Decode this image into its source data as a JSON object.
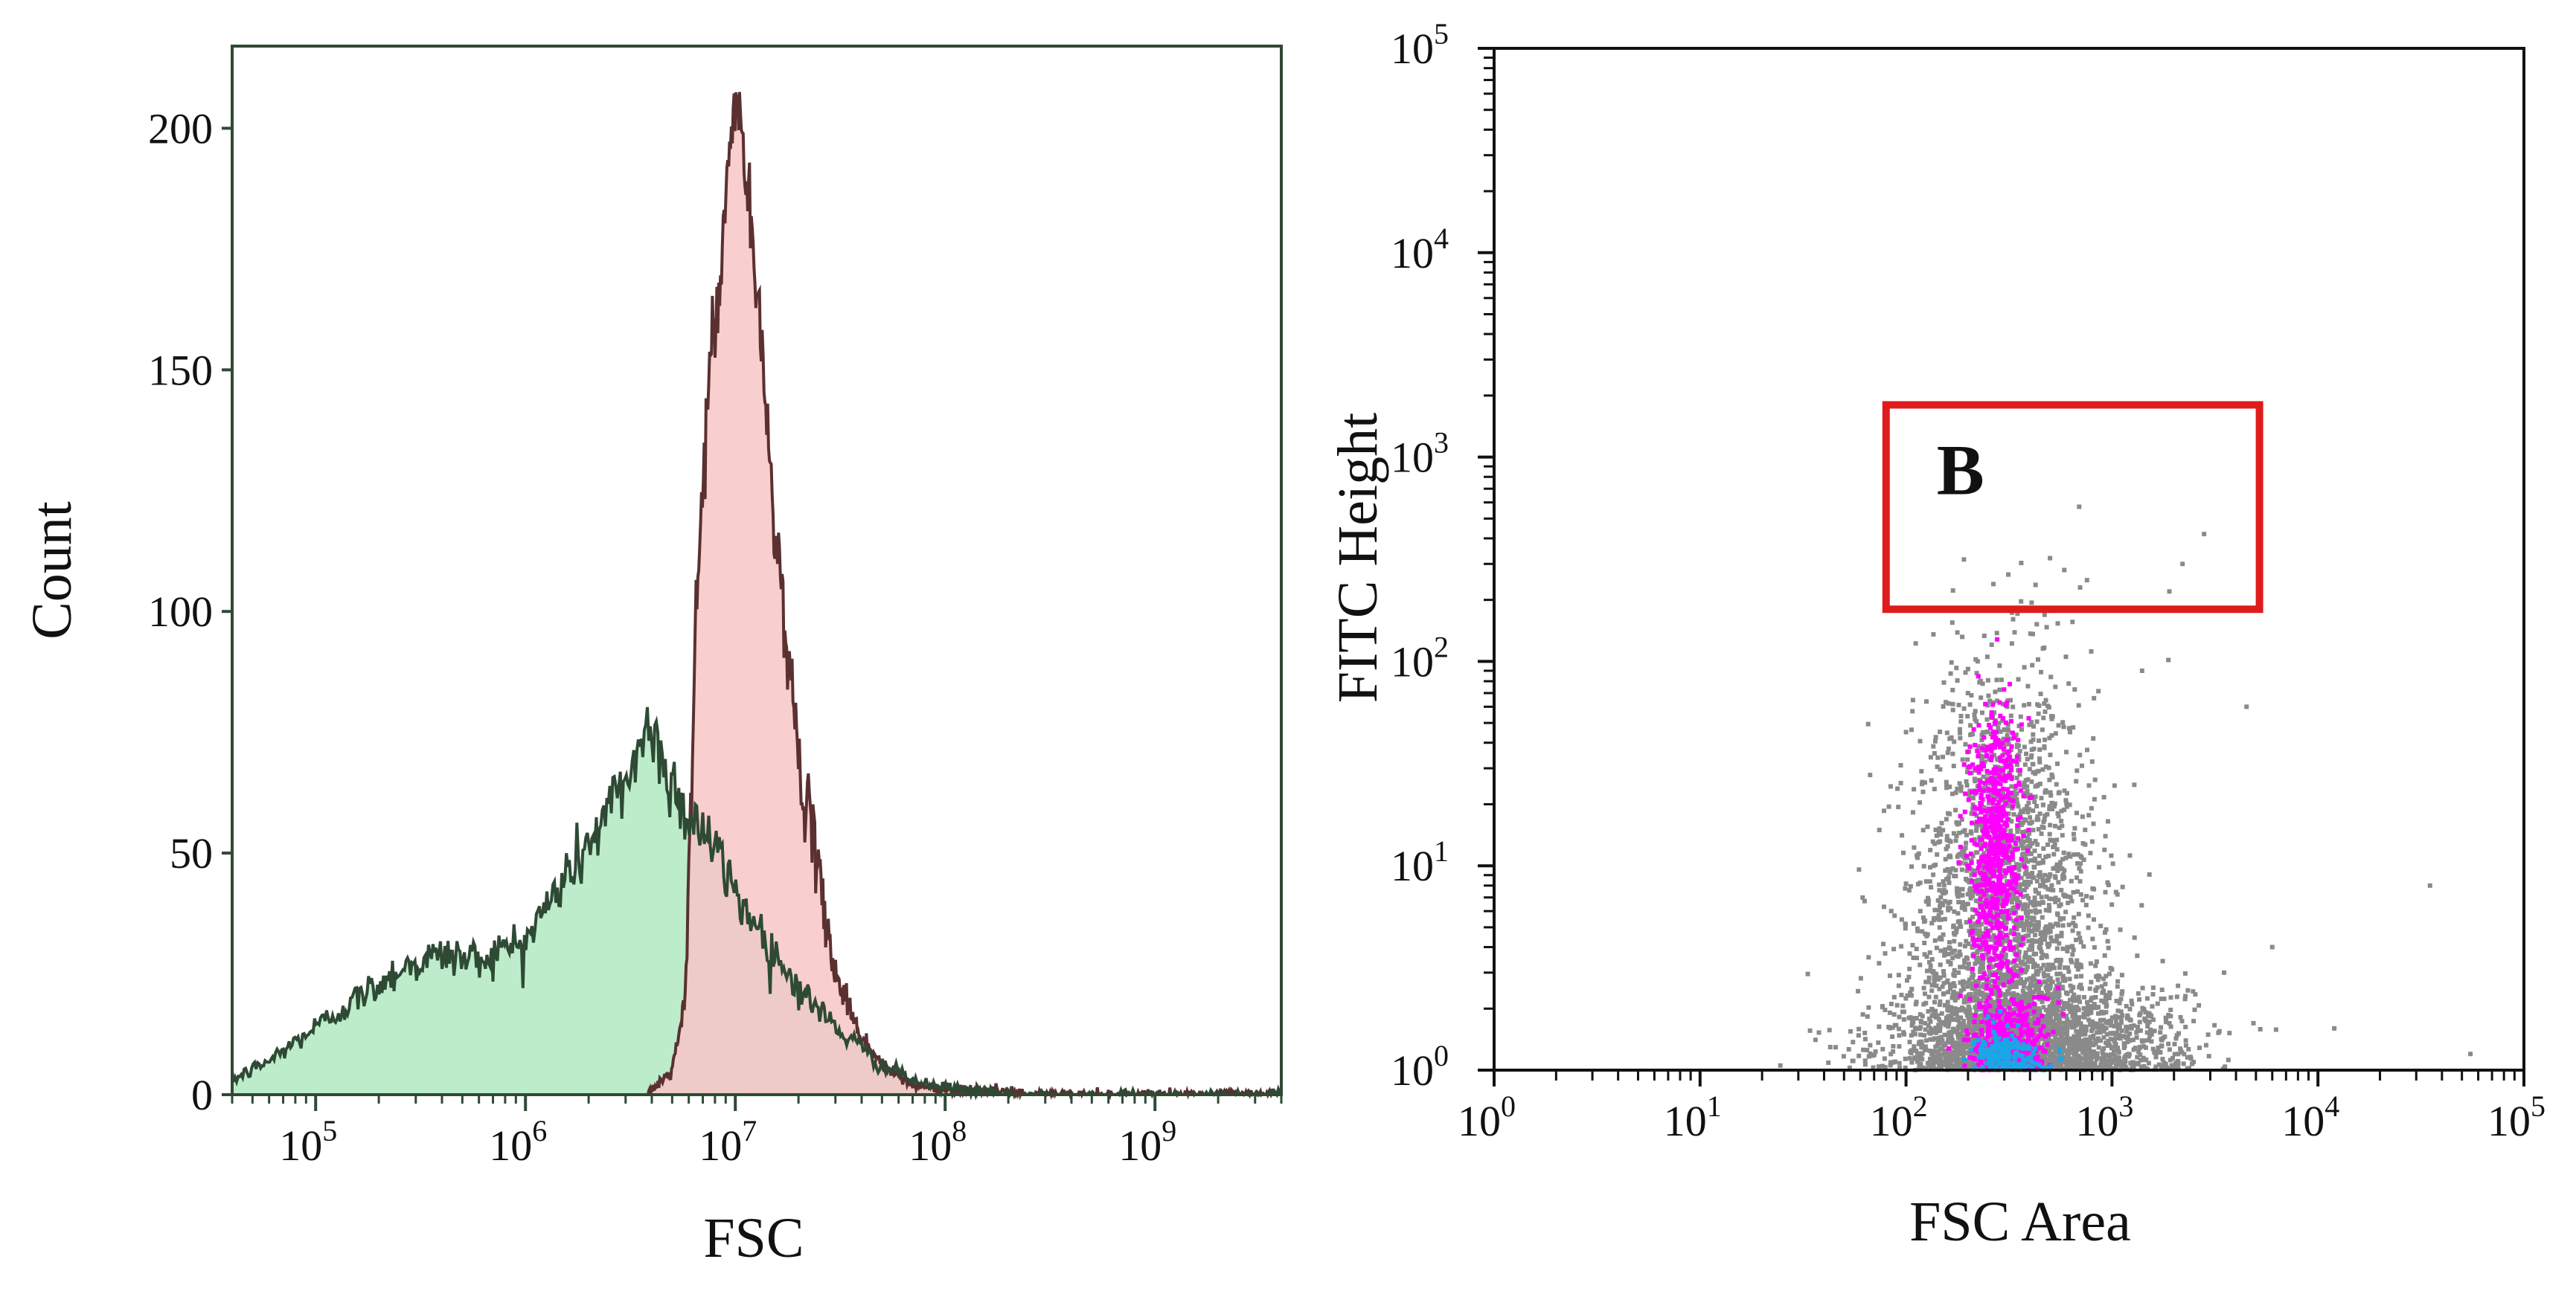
{
  "chart_data": [
    {
      "type": "area",
      "xlabel": "FSC",
      "ylabel": "Count",
      "xscale": "log",
      "xlim": [
        40000,
        4000000000
      ],
      "ylim": [
        0,
        217
      ],
      "grid": false,
      "xtick_labels": [
        {
          "value": 100000,
          "base": "10",
          "exp": "5"
        },
        {
          "value": 1000000,
          "base": "10",
          "exp": "6"
        },
        {
          "value": 10000000,
          "base": "10",
          "exp": "7"
        },
        {
          "value": 100000000,
          "base": "10",
          "exp": "8"
        },
        {
          "value": 1000000000,
          "base": "10",
          "exp": "9"
        }
      ],
      "yticks": [
        0,
        50,
        100,
        150,
        200
      ],
      "ytick_labels": [
        "0",
        "50",
        "100",
        "150",
        "200"
      ],
      "series": [
        {
          "color": "#bdeccb",
          "line_color": "#2e4a34",
          "x": [
            40000,
            60000,
            100000,
            160000,
            250000,
            400000,
            600000,
            1000000,
            1500000,
            2000000,
            2800000,
            3800000,
            4500000,
            5500000,
            7000000,
            10000000,
            15000000,
            20000000,
            30000000,
            50000000,
            80000000,
            130000000,
            200000000,
            4000000000
          ],
          "values": [
            3,
            7,
            14,
            20,
            26,
            29,
            28,
            32,
            44,
            52,
            62,
            76,
            70,
            60,
            55,
            42,
            30,
            22,
            14,
            6,
            2,
            1,
            0,
            0
          ]
        },
        {
          "color": "#f7c5c5",
          "line_color": "#5a3030",
          "x": [
            3800000,
            5000000,
            5800000,
            6500000,
            7500000,
            8500000,
            9500000,
            10500000,
            11500000,
            13000000,
            15000000,
            17000000,
            20000000,
            25000000,
            30000000,
            40000000,
            50000000,
            70000000,
            100000000,
            150000000,
            250000000,
            500000000,
            4000000000
          ],
          "values": [
            0,
            5,
            20,
            100,
            150,
            168,
            200,
            205,
            185,
            160,
            125,
            100,
            70,
            45,
            25,
            12,
            6,
            2,
            1,
            1,
            0,
            0,
            0
          ]
        }
      ]
    },
    {
      "type": "scatter",
      "xlabel": "FSC Area",
      "ylabel": "FITC Height",
      "xscale": "log",
      "yscale": "log",
      "xlim": [
        1,
        100000
      ],
      "ylim": [
        1,
        100000
      ],
      "grid": false,
      "xtick_labels": [
        {
          "value": 1,
          "base": "10",
          "exp": "0"
        },
        {
          "value": 10,
          "base": "10",
          "exp": "1"
        },
        {
          "value": 100,
          "base": "10",
          "exp": "2"
        },
        {
          "value": 1000,
          "base": "10",
          "exp": "3"
        },
        {
          "value": 10000,
          "base": "10",
          "exp": "4"
        },
        {
          "value": 100000,
          "base": "10",
          "exp": "5"
        }
      ],
      "ytick_labels": [
        {
          "value": 1,
          "base": "10",
          "exp": "0"
        },
        {
          "value": 10,
          "base": "10",
          "exp": "1"
        },
        {
          "value": 100,
          "base": "10",
          "exp": "2"
        },
        {
          "value": 1000,
          "base": "10",
          "exp": "3"
        },
        {
          "value": 10000,
          "base": "10",
          "exp": "4"
        },
        {
          "value": 100000,
          "base": "10",
          "exp": "5"
        }
      ],
      "point_colors": {
        "sparse": "#8a8a8a",
        "dense": "#ff00ff",
        "densest": "#19a7e6"
      },
      "clusters": [
        {
          "density": "sparse",
          "x_center": 300,
          "x_spread_decades": 0.22,
          "y_center": 5,
          "y_spread_decades": 0.6,
          "count": 2600
        },
        {
          "density": "sparse",
          "x_center": 450,
          "x_spread_decades": 0.35,
          "y_center": 1.4,
          "y_spread_decades": 0.15,
          "count": 1800
        },
        {
          "density": "dense",
          "x_center": 270,
          "x_spread_decades": 0.06,
          "y_center": 12,
          "y_spread_decades": 0.35,
          "count": 700
        },
        {
          "density": "dense",
          "x_center": 320,
          "x_spread_decades": 0.1,
          "y_center": 1.4,
          "y_spread_decades": 0.12,
          "count": 350
        },
        {
          "density": "densest",
          "x_center": 310,
          "x_spread_decades": 0.08,
          "y_center": 1.15,
          "y_spread_decades": 0.06,
          "count": 200
        }
      ],
      "outliers": [
        {
          "x": 500,
          "y": 320
        },
        {
          "x": 2800,
          "y": 420
        },
        {
          "x": 2200,
          "y": 300
        },
        {
          "x": 1900,
          "y": 220
        },
        {
          "x": 700,
          "y": 230
        },
        {
          "x": 12000,
          "y": 1.6
        },
        {
          "x": 35000,
          "y": 8
        },
        {
          "x": 55000,
          "y": 1.2
        },
        {
          "x": 6000,
          "y": 4
        },
        {
          "x": 3500,
          "y": 3
        },
        {
          "x": 1400,
          "y": 90
        },
        {
          "x": 4500,
          "y": 60
        }
      ],
      "gate": {
        "label": "B",
        "x_min": 80,
        "x_max": 5200,
        "y_min": 180,
        "y_max": 1800,
        "color": "#e01b1b"
      }
    }
  ]
}
